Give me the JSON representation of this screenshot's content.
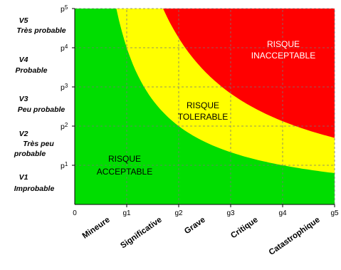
{
  "chart_data": {
    "type": "area",
    "title": "",
    "xlabel": "",
    "ylabel": "",
    "x_ticks": [
      "0",
      "g1",
      "g2",
      "g3",
      "g4",
      "g5"
    ],
    "y_ticks": [
      "p1",
      "p2",
      "p3",
      "p4",
      "p5"
    ],
    "y_tick_prefix": "p",
    "y_tick_exponents": [
      "1",
      "2",
      "3",
      "4",
      "5"
    ],
    "x_categories": [
      "Mineure",
      "Significative",
      "Grave",
      "Critique",
      "Catastrophique"
    ],
    "y_categories": [
      {
        "code": "V1",
        "name": "Improbable"
      },
      {
        "code": "V2",
        "name": "Très peu probable"
      },
      {
        "code": "V3",
        "name": "Peu probable"
      },
      {
        "code": "V4",
        "name": "Probable"
      },
      {
        "code": "V5",
        "name": "Très probable"
      }
    ],
    "xlim": [
      0,
      5
    ],
    "ylim": [
      0,
      5
    ],
    "grid": true,
    "zones": [
      {
        "name": "RISQUE ACCEPTABLE",
        "color": "#00DD00"
      },
      {
        "name": "RISQUE TOLERABLE",
        "color": "#FFFF00"
      },
      {
        "name": "RISQUE INACCEPTABLE",
        "color": "#FF0000"
      }
    ],
    "boundaries": [
      {
        "between": "acceptable-tolerable",
        "product": 4
      },
      {
        "between": "tolerable-inacceptable",
        "product": 8.5
      }
    ]
  },
  "labels": {
    "acceptable": [
      "RISQUE",
      "ACCEPTABLE"
    ],
    "tolerable": [
      "RISQUE",
      "TOLERABLE"
    ],
    "inacceptable": [
      "RISQUE",
      "INACCEPTABLE"
    ]
  },
  "y_axis_labels": [
    {
      "code": "V5",
      "lines": [
        "Très probable"
      ]
    },
    {
      "code": "V4",
      "lines": [
        "Probable"
      ]
    },
    {
      "code": "V3",
      "lines": [
        "Peu probable"
      ]
    },
    {
      "code": "V2",
      "lines": [
        "Très peu",
        "probable"
      ]
    },
    {
      "code": "V1",
      "lines": [
        "Improbable"
      ]
    }
  ]
}
